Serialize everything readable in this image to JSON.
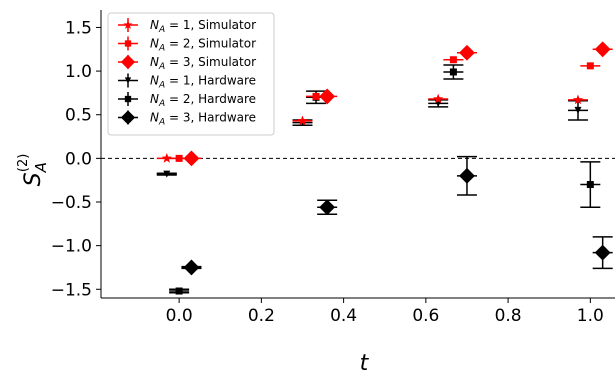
{
  "chart_data": {
    "type": "scatter",
    "xlabel": "t",
    "ylabel_main": "S",
    "ylabel_sub": "A",
    "ylabel_sup": "(2)",
    "xlim": [
      -0.19,
      1.06
    ],
    "ylim": [
      -1.6,
      1.7
    ],
    "x_ticks": [
      0.0,
      0.2,
      0.4,
      0.6,
      0.8,
      1.0
    ],
    "x_tick_labels": [
      "0.0",
      "0.2",
      "0.4",
      "0.6",
      "0.8",
      "1.0"
    ],
    "y_ticks": [
      -1.5,
      -1.0,
      -0.5,
      0.0,
      0.5,
      1.0,
      1.5
    ],
    "y_tick_labels": [
      "−1.5",
      "−1.0",
      "−0.5",
      "0.0",
      "0.5",
      "1.0",
      "1.5"
    ],
    "grid": false,
    "legend_position": "top-left",
    "reference_line": {
      "y": 0,
      "style": "dashed",
      "color": "#000000"
    },
    "series": [
      {
        "name_prefix": "N",
        "name_sub": "A",
        "name_suffix": " = 1, Simulator",
        "color": "#ff0000",
        "marker": "star",
        "points": [
          {
            "x": -0.03,
            "y": 0.0,
            "yerr": 0.0
          },
          {
            "x": 0.3,
            "y": 0.43,
            "yerr": 0.0
          },
          {
            "x": 0.63,
            "y": 0.68,
            "yerr": 0.0
          },
          {
            "x": 0.97,
            "y": 0.67,
            "yerr": 0.0
          }
        ]
      },
      {
        "name_prefix": "N",
        "name_sub": "A",
        "name_suffix": " = 2, Simulator",
        "color": "#ff0000",
        "marker": "square",
        "points": [
          {
            "x": 0.0,
            "y": 0.0,
            "yerr": 0.0
          },
          {
            "x": 0.333,
            "y": 0.71,
            "yerr": 0.0
          },
          {
            "x": 0.667,
            "y": 1.13,
            "yerr": 0.0
          },
          {
            "x": 1.0,
            "y": 1.06,
            "yerr": 0.0
          }
        ]
      },
      {
        "name_prefix": "N",
        "name_sub": "A",
        "name_suffix": " = 3, Simulator",
        "color": "#ff0000",
        "marker": "diamond",
        "points": [
          {
            "x": 0.03,
            "y": 0.0,
            "yerr": 0.0
          },
          {
            "x": 0.36,
            "y": 0.71,
            "yerr": 0.0
          },
          {
            "x": 0.7,
            "y": 1.21,
            "yerr": 0.0
          },
          {
            "x": 1.03,
            "y": 1.25,
            "yerr": 0.0
          }
        ]
      },
      {
        "name_prefix": "N",
        "name_sub": "A",
        "name_suffix": " = 1, Hardware",
        "color": "#000000",
        "marker": "tri_down",
        "points": [
          {
            "x": -0.03,
            "y": -0.18,
            "yerr": 0.01
          },
          {
            "x": 0.3,
            "y": 0.41,
            "yerr": 0.03
          },
          {
            "x": 0.63,
            "y": 0.63,
            "yerr": 0.04
          },
          {
            "x": 0.97,
            "y": 0.55,
            "yerr": 0.11
          }
        ]
      },
      {
        "name_prefix": "N",
        "name_sub": "A",
        "name_suffix": " = 2, Hardware",
        "color": "#000000",
        "marker": "square",
        "points": [
          {
            "x": 0.0,
            "y": -1.52,
            "yerr": 0.02
          },
          {
            "x": 0.333,
            "y": 0.7,
            "yerr": 0.07
          },
          {
            "x": 0.667,
            "y": 0.99,
            "yerr": 0.08
          },
          {
            "x": 1.0,
            "y": -0.3,
            "yerr": 0.26
          }
        ]
      },
      {
        "name_prefix": "N",
        "name_sub": "A",
        "name_suffix": " = 3, Hardware",
        "color": "#000000",
        "marker": "diamond",
        "points": [
          {
            "x": 0.03,
            "y": -1.25,
            "yerr": 0.01
          },
          {
            "x": 0.36,
            "y": -0.56,
            "yerr": 0.08
          },
          {
            "x": 0.7,
            "y": -0.2,
            "yerr": 0.22
          },
          {
            "x": 1.03,
            "y": -1.08,
            "yerr": 0.18
          }
        ]
      }
    ]
  }
}
